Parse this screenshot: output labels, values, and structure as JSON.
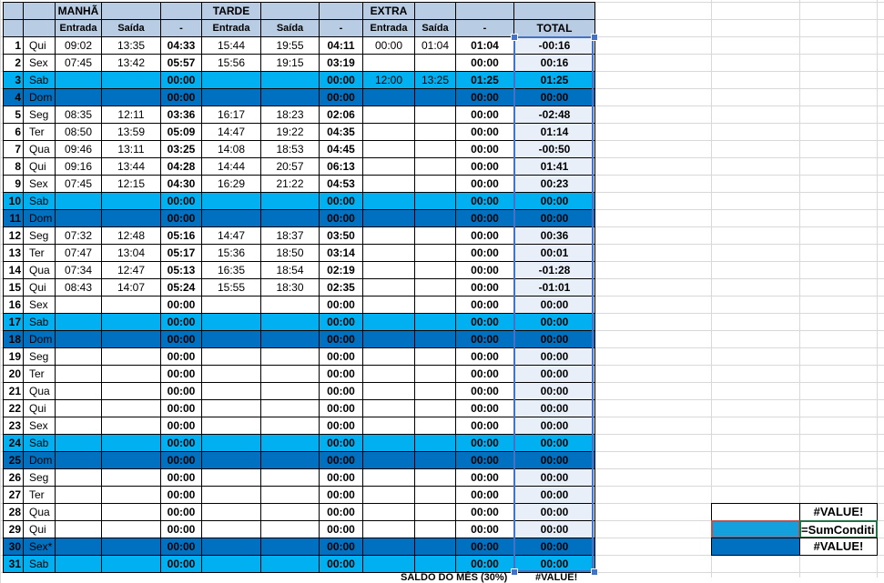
{
  "headers": {
    "manha": "MANHÃ",
    "tarde": "TARDE",
    "extra": "EXTRA",
    "entrada": "Entrada",
    "saida": "Saída",
    "dash": "-",
    "total": "TOTAL"
  },
  "colors": {
    "weekday": "#ffffff",
    "saturday": "#00b0f0",
    "sunday": "#0070c0",
    "header": "#b8cce4",
    "total_column": "#e9eff8"
  },
  "rows": [
    [
      "1",
      "Qui",
      "09:02",
      "13:35",
      "04:33",
      "15:44",
      "19:55",
      "04:11",
      "00:00",
      "01:04",
      "01:04",
      "-00:16",
      "w"
    ],
    [
      "2",
      "Sex",
      "07:45",
      "13:42",
      "05:57",
      "15:56",
      "19:15",
      "03:19",
      "",
      "",
      "00:00",
      "00:16",
      "w"
    ],
    [
      "3",
      "Sab",
      "",
      "",
      "00:00",
      "",
      "",
      "00:00",
      "12:00",
      "13:25",
      "01:25",
      "01:25",
      "l"
    ],
    [
      "4",
      "Dom",
      "",
      "",
      "00:00",
      "",
      "",
      "00:00",
      "",
      "",
      "00:00",
      "00:00",
      "d"
    ],
    [
      "5",
      "Seg",
      "08:35",
      "12:11",
      "03:36",
      "16:17",
      "18:23",
      "02:06",
      "",
      "",
      "00:00",
      "-02:48",
      "w"
    ],
    [
      "6",
      "Ter",
      "08:50",
      "13:59",
      "05:09",
      "14:47",
      "19:22",
      "04:35",
      "",
      "",
      "00:00",
      "01:14",
      "w"
    ],
    [
      "7",
      "Qua",
      "09:46",
      "13:11",
      "03:25",
      "14:08",
      "18:53",
      "04:45",
      "",
      "",
      "00:00",
      "-00:50",
      "w"
    ],
    [
      "8",
      "Qui",
      "09:16",
      "13:44",
      "04:28",
      "14:44",
      "20:57",
      "06:13",
      "",
      "",
      "00:00",
      "01:41",
      "w"
    ],
    [
      "9",
      "Sex",
      "07:45",
      "12:15",
      "04:30",
      "16:29",
      "21:22",
      "04:53",
      "",
      "",
      "00:00",
      "00:23",
      "w"
    ],
    [
      "10",
      "Sab",
      "",
      "",
      "00:00",
      "",
      "",
      "00:00",
      "",
      "",
      "00:00",
      "00:00",
      "l"
    ],
    [
      "11",
      "Dom",
      "",
      "",
      "00:00",
      "",
      "",
      "00:00",
      "",
      "",
      "00:00",
      "00:00",
      "d"
    ],
    [
      "12",
      "Seg",
      "07:32",
      "12:48",
      "05:16",
      "14:47",
      "18:37",
      "03:50",
      "",
      "",
      "00:00",
      "00:36",
      "w"
    ],
    [
      "13",
      "Ter",
      "07:47",
      "13:04",
      "05:17",
      "15:36",
      "18:50",
      "03:14",
      "",
      "",
      "00:00",
      "00:01",
      "w"
    ],
    [
      "14",
      "Qua",
      "07:34",
      "12:47",
      "05:13",
      "16:35",
      "18:54",
      "02:19",
      "",
      "",
      "00:00",
      "-01:28",
      "w"
    ],
    [
      "15",
      "Qui",
      "08:43",
      "14:07",
      "05:24",
      "15:55",
      "18:30",
      "02:35",
      "",
      "",
      "00:00",
      "-01:01",
      "w"
    ],
    [
      "16",
      "Sex",
      "",
      "",
      "00:00",
      "",
      "",
      "00:00",
      "",
      "",
      "00:00",
      "00:00",
      "w"
    ],
    [
      "17",
      "Sab",
      "",
      "",
      "00:00",
      "",
      "",
      "00:00",
      "",
      "",
      "00:00",
      "00:00",
      "l"
    ],
    [
      "18",
      "Dom",
      "",
      "",
      "00:00",
      "",
      "",
      "00:00",
      "",
      "",
      "00:00",
      "00:00",
      "d"
    ],
    [
      "19",
      "Seg",
      "",
      "",
      "00:00",
      "",
      "",
      "00:00",
      "",
      "",
      "00:00",
      "00:00",
      "w"
    ],
    [
      "20",
      "Ter",
      "",
      "",
      "00:00",
      "",
      "",
      "00:00",
      "",
      "",
      "00:00",
      "00:00",
      "w"
    ],
    [
      "21",
      "Qua",
      "",
      "",
      "00:00",
      "",
      "",
      "00:00",
      "",
      "",
      "00:00",
      "00:00",
      "w"
    ],
    [
      "22",
      "Qui",
      "",
      "",
      "00:00",
      "",
      "",
      "00:00",
      "",
      "",
      "00:00",
      "00:00",
      "w"
    ],
    [
      "23",
      "Sex",
      "",
      "",
      "00:00",
      "",
      "",
      "00:00",
      "",
      "",
      "00:00",
      "00:00",
      "w"
    ],
    [
      "24",
      "Sab",
      "",
      "",
      "00:00",
      "",
      "",
      "00:00",
      "",
      "",
      "00:00",
      "00:00",
      "l"
    ],
    [
      "25",
      "Dom",
      "",
      "",
      "00:00",
      "",
      "",
      "00:00",
      "",
      "",
      "00:00",
      "00:00",
      "d"
    ],
    [
      "26",
      "Seg",
      "",
      "",
      "00:00",
      "",
      "",
      "00:00",
      "",
      "",
      "00:00",
      "00:00",
      "w"
    ],
    [
      "27",
      "Ter",
      "",
      "",
      "00:00",
      "",
      "",
      "00:00",
      "",
      "",
      "00:00",
      "00:00",
      "w"
    ],
    [
      "28",
      "Qua",
      "",
      "",
      "00:00",
      "",
      "",
      "00:00",
      "",
      "",
      "00:00",
      "00:00",
      "w"
    ],
    [
      "29",
      "Qui",
      "",
      "",
      "00:00",
      "",
      "",
      "00:00",
      "",
      "",
      "00:00",
      "00:00",
      "w"
    ],
    [
      "30",
      "Sex*",
      "",
      "",
      "00:00",
      "",
      "",
      "00:00",
      "",
      "",
      "00:00",
      "00:00",
      "d"
    ],
    [
      "31",
      "Sab",
      "",
      "",
      "00:00",
      "",
      "",
      "00:00",
      "",
      "",
      "00:00",
      "00:00",
      "l"
    ]
  ],
  "footer": {
    "label": "SALDO DO MÊS (30%)",
    "value": "#VALUE!"
  },
  "side": {
    "value1": "#VALUE!",
    "formula": "=SumConditi",
    "value2": "#VALUE!"
  }
}
